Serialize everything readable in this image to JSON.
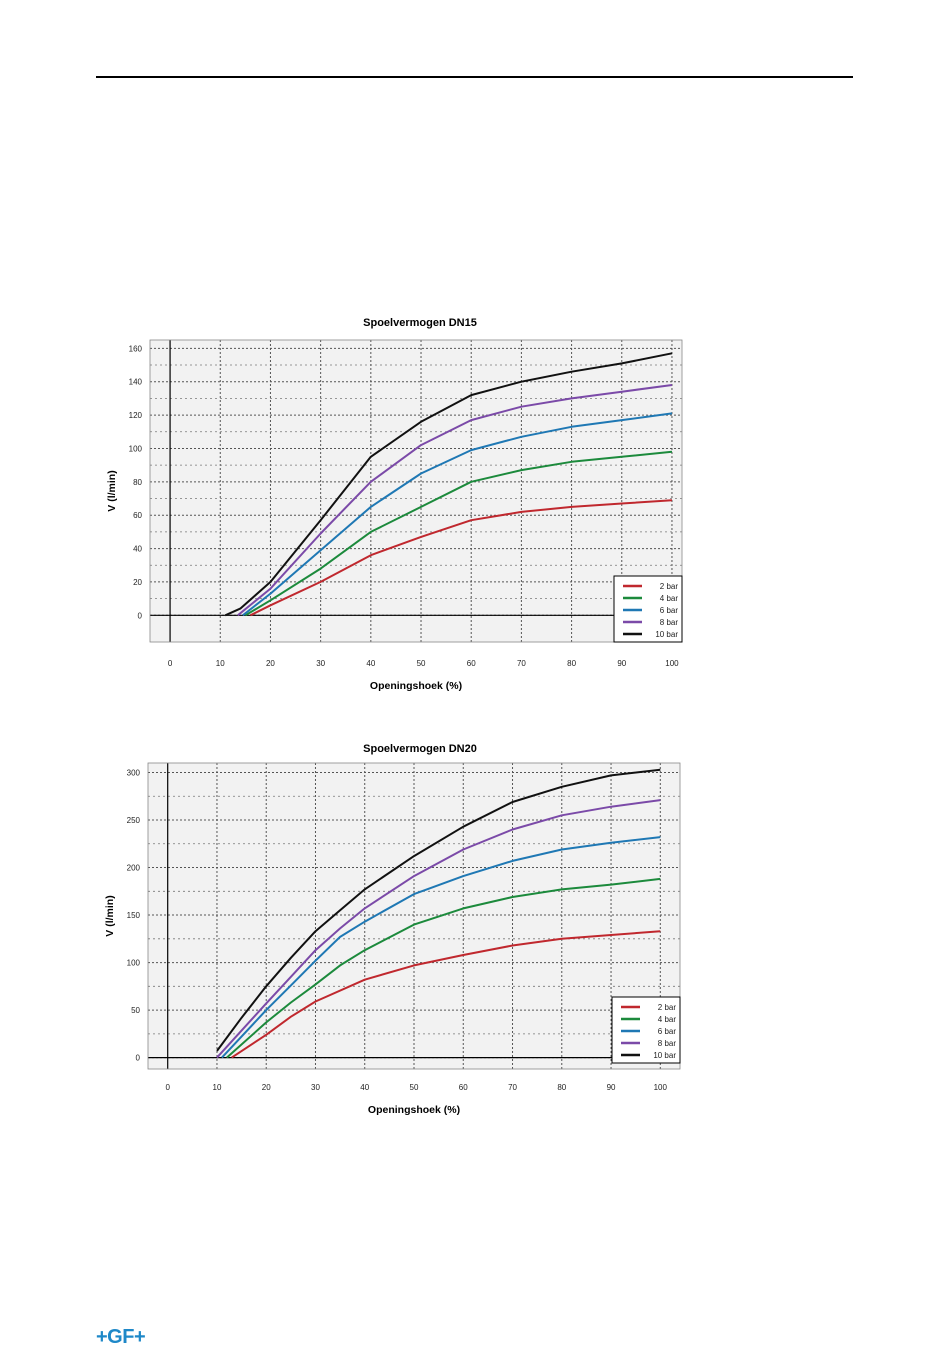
{
  "brand": {
    "logo_text": "+GF+",
    "logo_color": "#1e88c8"
  },
  "colors": {
    "2 bar": "#c0282e",
    "4 bar": "#1c8a3c",
    "6 bar": "#1f78b4",
    "8 bar": "#7b4aa8",
    "10 bar": "#111111"
  },
  "chart_data": [
    {
      "type": "line",
      "title": "Spoelvermogen DN15",
      "xlabel": "Openingshoek (%)",
      "ylabel": "V (l/min)",
      "xlim": [
        -4,
        102
      ],
      "ylim": [
        -16,
        165
      ],
      "xticks": [
        0,
        10,
        20,
        30,
        40,
        50,
        60,
        70,
        80,
        90,
        100
      ],
      "yticks": [
        0,
        20,
        40,
        60,
        80,
        100,
        120,
        140,
        160
      ],
      "legend_position": "bottom-right",
      "series": [
        {
          "name": "2 bar",
          "points": [
            [
              16,
              0
            ],
            [
              20,
              6
            ],
            [
              30,
              20
            ],
            [
              40,
              36
            ],
            [
              50,
              47
            ],
            [
              60,
              57
            ],
            [
              70,
              62
            ],
            [
              80,
              65
            ],
            [
              90,
              67
            ],
            [
              100,
              69
            ]
          ]
        },
        {
          "name": "4 bar",
          "points": [
            [
              15,
              0
            ],
            [
              20,
              9
            ],
            [
              30,
              28
            ],
            [
              40,
              50
            ],
            [
              50,
              65
            ],
            [
              60,
              80
            ],
            [
              70,
              87
            ],
            [
              80,
              92
            ],
            [
              90,
              95
            ],
            [
              100,
              98
            ]
          ]
        },
        {
          "name": "6 bar",
          "points": [
            [
              14.5,
              0
            ],
            [
              20,
              13
            ],
            [
              30,
              39
            ],
            [
              40,
              65
            ],
            [
              50,
              85
            ],
            [
              60,
              99
            ],
            [
              70,
              107
            ],
            [
              80,
              113
            ],
            [
              90,
              117
            ],
            [
              100,
              121
            ]
          ]
        },
        {
          "name": "8 bar",
          "points": [
            [
              13.5,
              0
            ],
            [
              20,
              16
            ],
            [
              30,
              49
            ],
            [
              40,
              80
            ],
            [
              50,
              102
            ],
            [
              60,
              117
            ],
            [
              70,
              125
            ],
            [
              80,
              130
            ],
            [
              90,
              134
            ],
            [
              100,
              138
            ]
          ]
        },
        {
          "name": "10 bar",
          "points": [
            [
              11,
              0
            ],
            [
              14,
              4
            ],
            [
              20,
              20
            ],
            [
              30,
              57
            ],
            [
              40,
              95
            ],
            [
              50,
              116
            ],
            [
              60,
              132
            ],
            [
              70,
              140
            ],
            [
              80,
              146
            ],
            [
              90,
              151
            ],
            [
              100,
              157
            ]
          ]
        }
      ]
    },
    {
      "type": "line",
      "title": "Spoelvermogen DN20",
      "xlabel": "Openingshoek (%)",
      "ylabel": "V (l/min)",
      "xlim": [
        -4,
        104
      ],
      "ylim": [
        -12,
        310
      ],
      "xticks": [
        0,
        10,
        20,
        30,
        40,
        50,
        60,
        70,
        80,
        90,
        100
      ],
      "yticks": [
        0,
        50,
        100,
        150,
        200,
        250,
        300
      ],
      "legend_position": "bottom-right",
      "series": [
        {
          "name": "2 bar",
          "points": [
            [
              13,
              0
            ],
            [
              20,
              24
            ],
            [
              25,
              43
            ],
            [
              30,
              59
            ],
            [
              40,
              82
            ],
            [
              50,
              97
            ],
            [
              60,
              108
            ],
            [
              70,
              118
            ],
            [
              80,
              125
            ],
            [
              90,
              129
            ],
            [
              100,
              133
            ]
          ]
        },
        {
          "name": "4 bar",
          "points": [
            [
              12,
              0
            ],
            [
              20,
              37
            ],
            [
              25,
              58
            ],
            [
              30,
              77
            ],
            [
              35,
              97
            ],
            [
              40,
              113
            ],
            [
              50,
              140
            ],
            [
              60,
              157
            ],
            [
              70,
              169
            ],
            [
              80,
              177
            ],
            [
              90,
              182
            ],
            [
              100,
              188
            ]
          ]
        },
        {
          "name": "6 bar",
          "points": [
            [
              11,
              0
            ],
            [
              20,
              50
            ],
            [
              25,
              76
            ],
            [
              30,
              102
            ],
            [
              35,
              127
            ],
            [
              40,
              143
            ],
            [
              50,
              172
            ],
            [
              60,
              191
            ],
            [
              70,
              207
            ],
            [
              80,
              219
            ],
            [
              90,
              226
            ],
            [
              100,
              232
            ]
          ]
        },
        {
          "name": "8 bar",
          "points": [
            [
              10,
              0
            ],
            [
              20,
              57
            ],
            [
              25,
              85
            ],
            [
              30,
              113
            ],
            [
              35,
              136
            ],
            [
              40,
              157
            ],
            [
              50,
              191
            ],
            [
              60,
              219
            ],
            [
              70,
              240
            ],
            [
              80,
              255
            ],
            [
              90,
              264
            ],
            [
              100,
              271
            ]
          ]
        },
        {
          "name": "10 bar",
          "points": [
            [
              10,
              7
            ],
            [
              15,
              42
            ],
            [
              20,
              75
            ],
            [
              25,
              105
            ],
            [
              30,
              133
            ],
            [
              35,
              155
            ],
            [
              40,
              177
            ],
            [
              50,
              212
            ],
            [
              60,
              243
            ],
            [
              70,
              269
            ],
            [
              80,
              285
            ],
            [
              90,
              297
            ],
            [
              100,
              303
            ]
          ]
        }
      ]
    }
  ]
}
